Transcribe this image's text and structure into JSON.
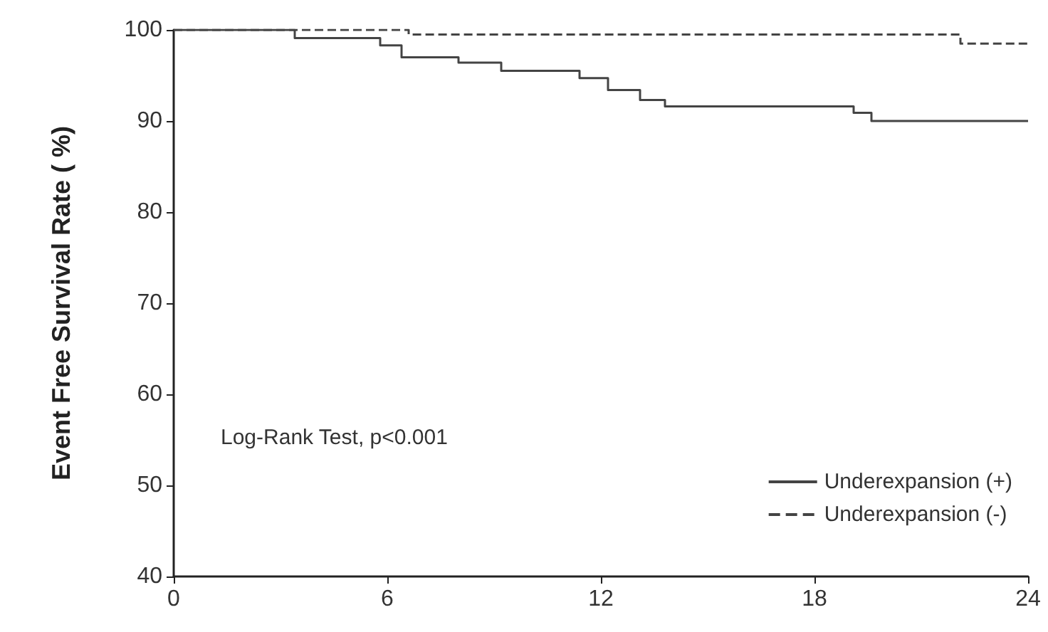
{
  "chart_data": {
    "type": "step",
    "ylabel": "Event Free Survival Rate ( %)",
    "xlim": [
      0,
      24
    ],
    "xticks": [
      0,
      6,
      12,
      18,
      24
    ],
    "ylim": [
      40,
      100
    ],
    "yticks": [
      40,
      50,
      60,
      70,
      80,
      90,
      100
    ],
    "grid": false,
    "legend": "bottom right",
    "marker": "none",
    "annotations": [
      "Log-Rank Test, p<0.001"
    ],
    "series": [
      {
        "name": "Underexpansion (+)",
        "color": "#444444",
        "line_style": "solid",
        "x": [
          0,
          3.4,
          5.8,
          6.4,
          8.0,
          9.2,
          11.4,
          12.2,
          13.1,
          13.8,
          19.1,
          19.6,
          24
        ],
        "values": [
          100,
          99.1,
          98.3,
          97.0,
          96.4,
          95.5,
          94.7,
          93.4,
          92.3,
          91.6,
          90.9,
          90.0,
          90.0
        ]
      },
      {
        "name": "Underexpansion (-)",
        "color": "#444444",
        "line_style": "dashed",
        "x": [
          0,
          6.6,
          22.1,
          24
        ],
        "values": [
          100,
          99.5,
          98.5,
          98.5
        ]
      }
    ]
  }
}
